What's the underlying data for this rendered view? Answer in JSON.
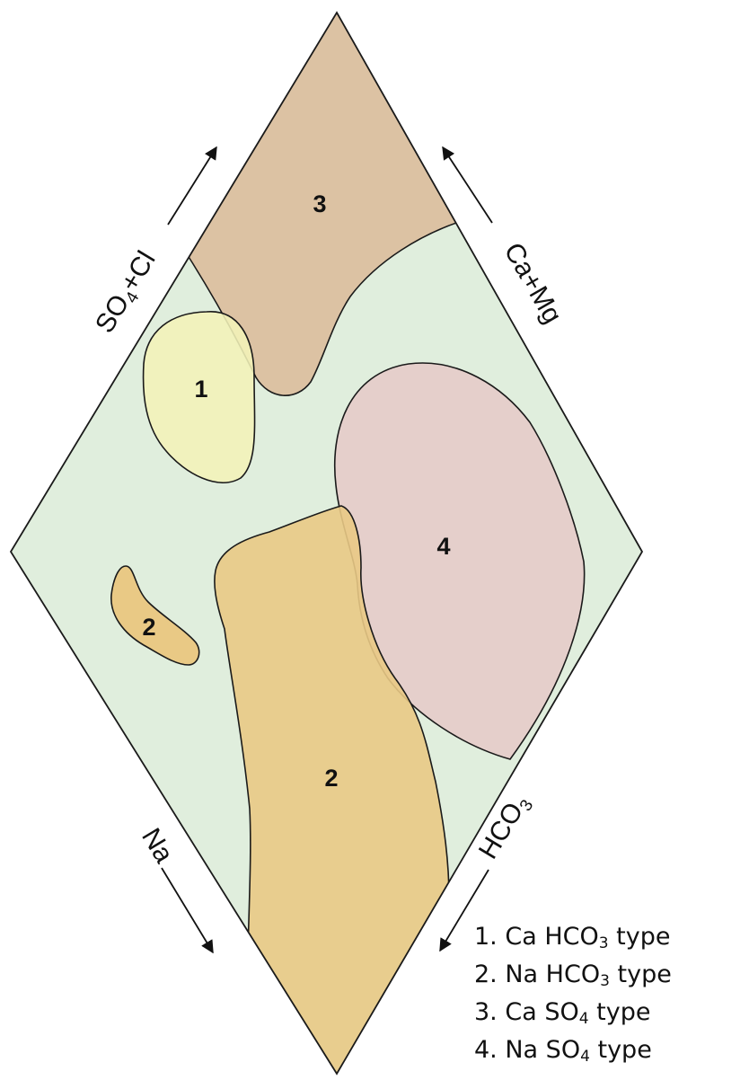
{
  "diagram": {
    "zone_labels": {
      "z1": "1",
      "z2a": "2",
      "z2b": "2",
      "z3": "3",
      "z4": "4"
    },
    "axes": {
      "top_left": {
        "main": "SO",
        "sub": "4",
        "rest": "+Cl"
      },
      "top_right": {
        "text": "Ca+Mg"
      },
      "bottom_left": {
        "text": "Na"
      },
      "bottom_right": {
        "main": "HCO",
        "sub": "3"
      }
    },
    "colors": {
      "background": "#e0eedd",
      "type1_ca_hco3": "#f2f2b8",
      "type2_na_hco3": "#e9c985",
      "type3_ca_so4": "#dcc2a3",
      "type4_na_so4": "#e5cbc9",
      "outline": "#1a1a1a"
    }
  },
  "legend": [
    {
      "num": "1.",
      "prefix": "Ca HCO",
      "sub": "3",
      "suffix": " type"
    },
    {
      "num": "2.",
      "prefix": "Na HCO",
      "sub": "3",
      "suffix": " type"
    },
    {
      "num": "3.",
      "prefix": "Ca SO",
      "sub": "4",
      "suffix": " type"
    },
    {
      "num": "4.",
      "prefix": "Na SO",
      "sub": "4",
      "suffix": " type"
    }
  ]
}
